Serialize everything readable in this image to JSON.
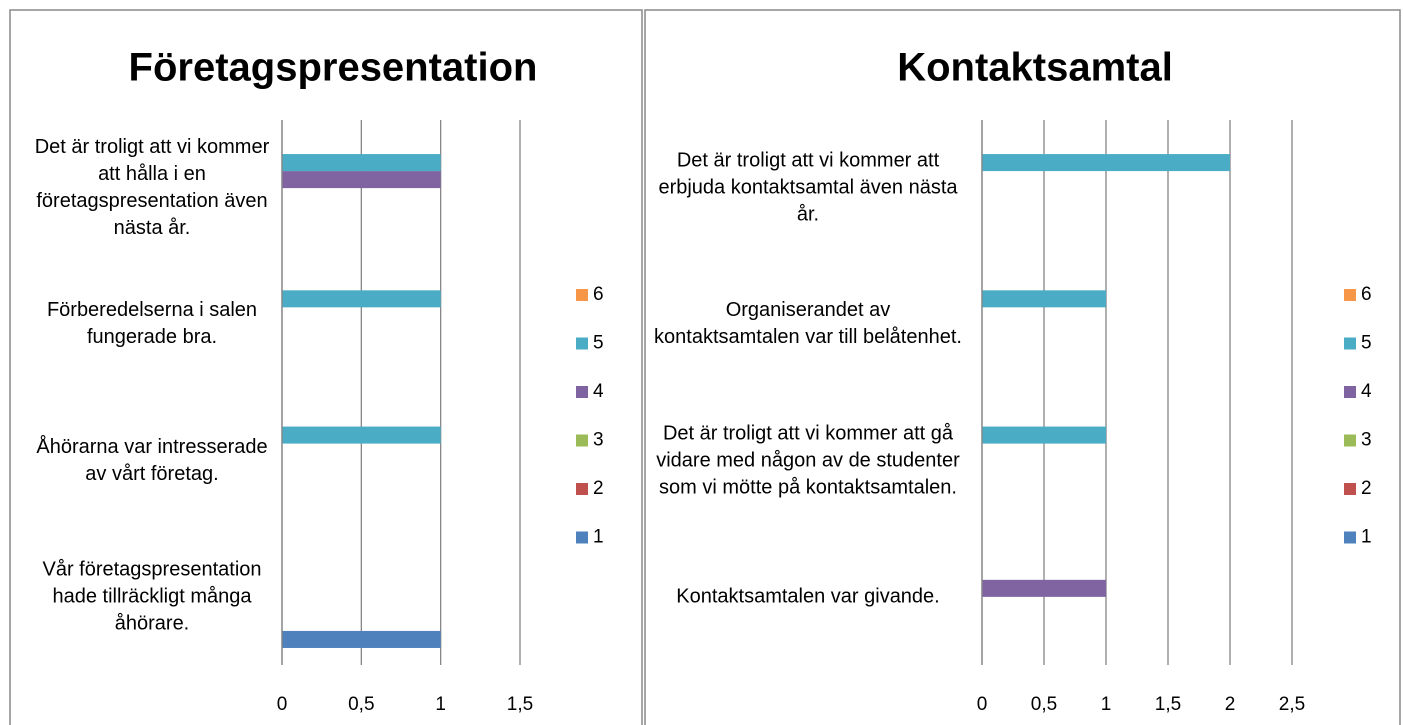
{
  "chart_data": [
    {
      "type": "bar",
      "orientation": "horizontal",
      "title": "Företagspresentation",
      "categories": [
        "Det är troligt att vi kommer att hålla i en företagspresentation även nästa år.",
        "Förberedelserna i salen fungerade bra.",
        "Åhörarna var intresserade av vårt företag.",
        "Vår företagspresentation hade tillräckligt många åhörare."
      ],
      "series": [
        {
          "name": "1",
          "color": "#4f81bd",
          "values": [
            0,
            0,
            0,
            1
          ]
        },
        {
          "name": "2",
          "color": "#c0504d",
          "values": [
            0,
            0,
            0,
            0
          ]
        },
        {
          "name": "3",
          "color": "#9bbb59",
          "values": [
            0,
            0,
            0,
            0
          ]
        },
        {
          "name": "4",
          "color": "#8064a2",
          "values": [
            1,
            0,
            0,
            0
          ]
        },
        {
          "name": "5",
          "color": "#4bacc6",
          "values": [
            1,
            1,
            1,
            0
          ]
        },
        {
          "name": "6",
          "color": "#f79646",
          "values": [
            0,
            0,
            0,
            0
          ]
        }
      ],
      "xlim": [
        0,
        1.5
      ],
      "xticks": [
        0,
        {
          "value": 0.5,
          "label": "0,5"
        },
        1,
        {
          "value": 1.5,
          "label": "1,5"
        }
      ],
      "grid": true,
      "legend": "right"
    },
    {
      "type": "bar",
      "orientation": "horizontal",
      "title": "Kontaktsamtal",
      "categories": [
        "Det är troligt att vi kommer att erbjuda kontaktsamtal även nästa år.",
        "Organiserandet av kontaktsamtalen var till belåtenhet.",
        "Det är troligt att vi kommer att gå vidare med någon av de studenter som vi mötte på kontaktsamtalen.",
        "Kontaktsamtalen var givande."
      ],
      "series": [
        {
          "name": "1",
          "color": "#4f81bd",
          "values": [
            0,
            0,
            0,
            0
          ]
        },
        {
          "name": "2",
          "color": "#c0504d",
          "values": [
            0,
            0,
            0,
            0
          ]
        },
        {
          "name": "3",
          "color": "#9bbb59",
          "values": [
            0,
            0,
            0,
            0
          ]
        },
        {
          "name": "4",
          "color": "#8064a2",
          "values": [
            0,
            0,
            0,
            1
          ]
        },
        {
          "name": "5",
          "color": "#4bacc6",
          "values": [
            2,
            1,
            1,
            0
          ]
        },
        {
          "name": "6",
          "color": "#f79646",
          "values": [
            0,
            0,
            0,
            0
          ]
        }
      ],
      "xlim": [
        0,
        2.5
      ],
      "xticks": [
        0,
        {
          "value": 0.5,
          "label": "0,5"
        },
        1,
        {
          "value": 1.5,
          "label": "1,5"
        },
        2,
        {
          "value": 2.5,
          "label": "2,5"
        }
      ],
      "grid": true,
      "legend": "right"
    }
  ]
}
